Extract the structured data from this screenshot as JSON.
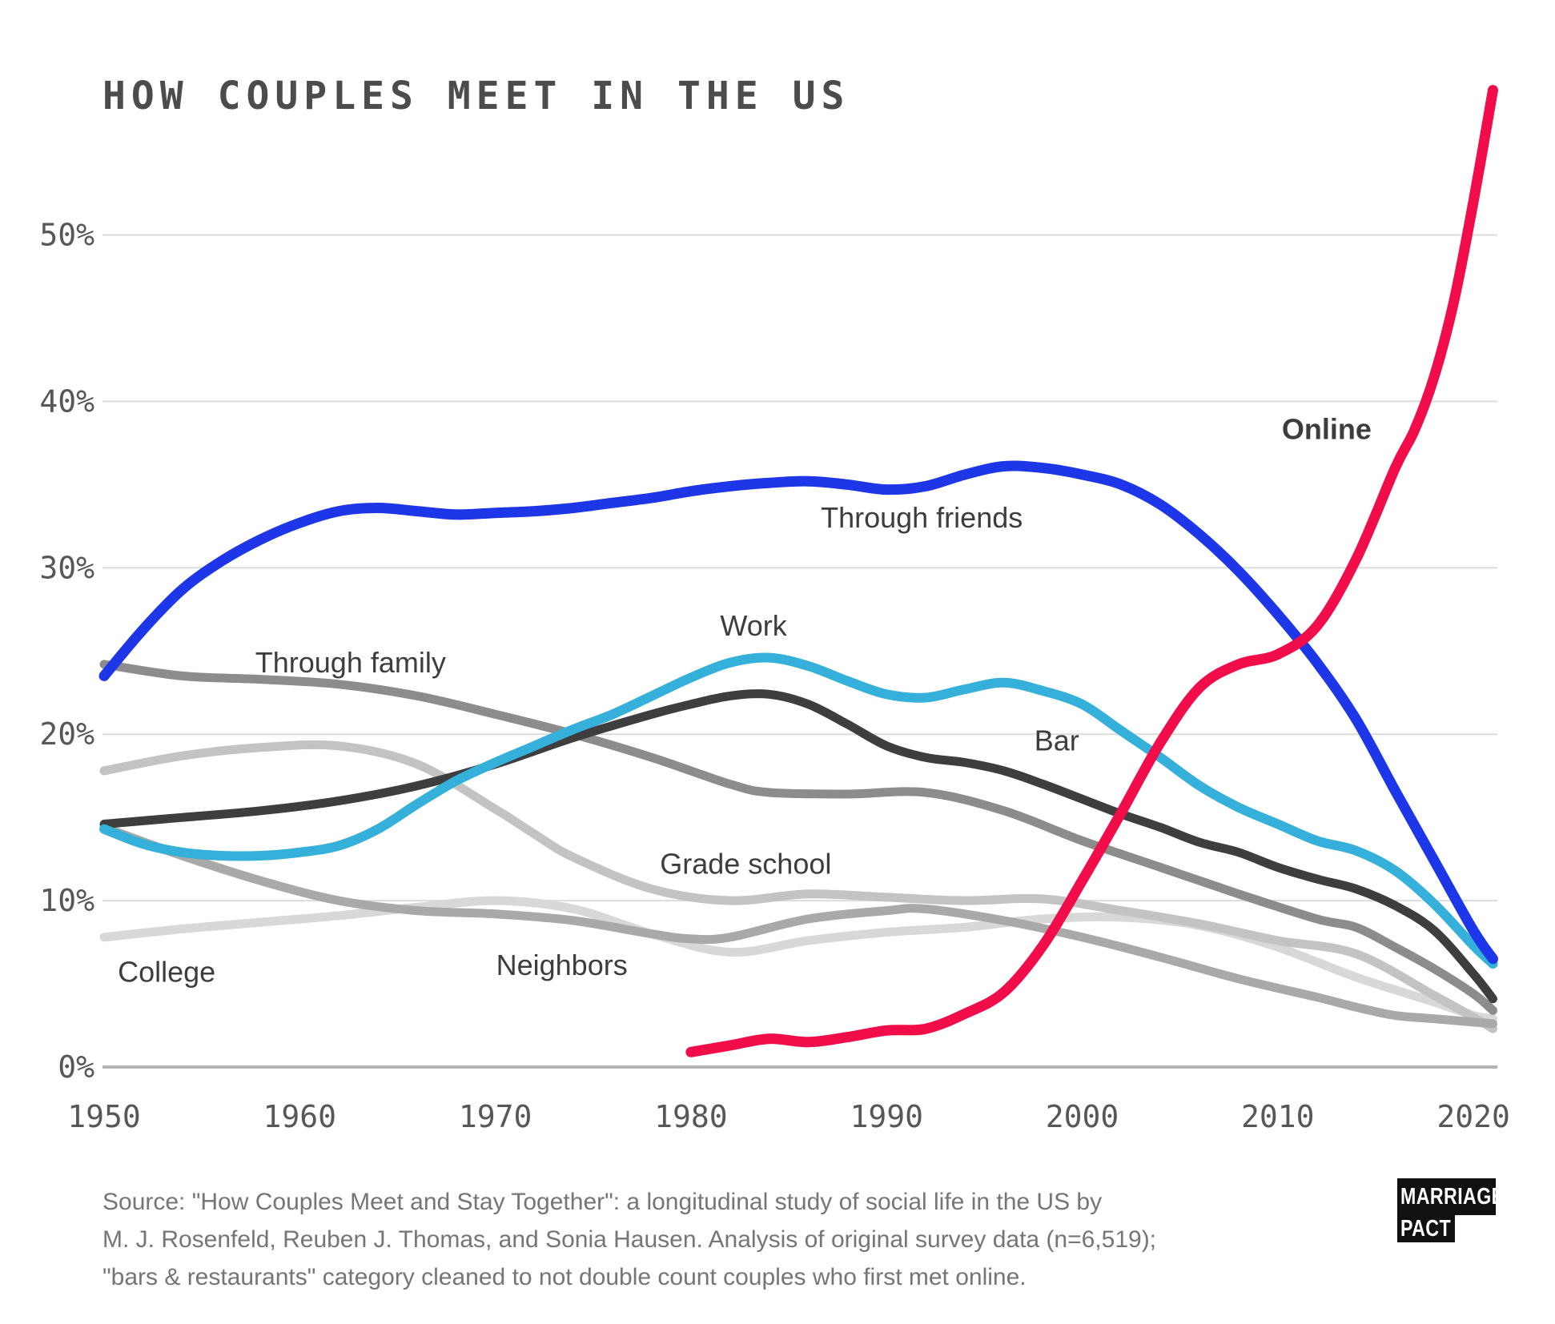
{
  "title": "HOW COUPLES MEET IN THE US",
  "source": {
    "lines": [
      "Source: \"How Couples Meet and Stay Together\": a longitudinal study of social life in the US by",
      "M. J. Rosenfeld, Reuben J. Thomas, and Sonia Hausen. Analysis of original survey data (n=6,519);",
      "\"bars & restaurants\" category cleaned to not double count couples who first met online."
    ]
  },
  "logo": {
    "line1": "MARRIAGE",
    "line2": "PACT"
  },
  "colors": {
    "background": "#ffffff",
    "title_text": "#4c4c4c",
    "tick_text": "#575757",
    "gridline": "#dcdcdc",
    "axis_line": "#b4b4b4",
    "label_text": "#3d3d3d",
    "online_red": "#f10d4a",
    "friends_blue": "#1c36e8",
    "work_cyan": "#34b0da",
    "bar_charcoal": "#3e3e3e",
    "family_gray": "#8c8c8c",
    "neighbors_gray": "#a9a9a9",
    "gradeschool_gray": "#c3c3c3",
    "college_gray": "#d8d8d8"
  },
  "chart_data": {
    "type": "line",
    "title": "HOW COUPLES MEET IN THE US",
    "xlabel": "",
    "ylabel": "",
    "grid": true,
    "legend_position": "inline-labels",
    "xlim": [
      1948.5,
      2022.5
    ],
    "ylim": [
      0,
      59
    ],
    "x_ticks": [
      {
        "v": 1950,
        "label": "1950"
      },
      {
        "v": 1960,
        "label": "1960"
      },
      {
        "v": 1970,
        "label": "1970"
      },
      {
        "v": 1980,
        "label": "1980"
      },
      {
        "v": 1990,
        "label": "1990"
      },
      {
        "v": 2000,
        "label": "2000"
      },
      {
        "v": 2010,
        "label": "2010"
      },
      {
        "v": 2020,
        "label": "2020"
      }
    ],
    "y_ticks": [
      {
        "v": 0,
        "label": "0%"
      },
      {
        "v": 10,
        "label": "10%"
      },
      {
        "v": 20,
        "label": "20%"
      },
      {
        "v": 30,
        "label": "30%"
      },
      {
        "v": 40,
        "label": "40%"
      },
      {
        "v": 50,
        "label": "50%"
      }
    ],
    "series": [
      {
        "name": "college",
        "label": "College",
        "color": "#d8d8d8",
        "stroke_width": 11,
        "label_bold": false,
        "label_color": "#3d3d3d",
        "label_pos": {
          "year": 1953.2,
          "pct": 5.7
        },
        "points": [
          [
            1950,
            7.8
          ],
          [
            1954,
            8.3
          ],
          [
            1958,
            8.7
          ],
          [
            1962,
            9.1
          ],
          [
            1966,
            9.6
          ],
          [
            1970,
            10.0
          ],
          [
            1974,
            9.5
          ],
          [
            1978,
            8.0
          ],
          [
            1982,
            6.9
          ],
          [
            1986,
            7.6
          ],
          [
            1990,
            8.1
          ],
          [
            1994,
            8.4
          ],
          [
            1998,
            8.9
          ],
          [
            2002,
            9.0
          ],
          [
            2006,
            8.5
          ],
          [
            2010,
            7.2
          ],
          [
            2014,
            5.4
          ],
          [
            2018,
            3.9
          ],
          [
            2020,
            3.1
          ],
          [
            2021,
            2.9
          ]
        ]
      },
      {
        "name": "grade_school",
        "label": "Grade school",
        "color": "#c3c3c3",
        "stroke_width": 11,
        "label_bold": false,
        "label_color": "#3d3d3d",
        "label_pos": {
          "year": 1982.8,
          "pct": 12.2
        },
        "points": [
          [
            1950,
            17.8
          ],
          [
            1954,
            18.7
          ],
          [
            1958,
            19.2
          ],
          [
            1962,
            19.3
          ],
          [
            1966,
            18.2
          ],
          [
            1970,
            15.5
          ],
          [
            1972,
            14.0
          ],
          [
            1974,
            12.6
          ],
          [
            1978,
            10.7
          ],
          [
            1982,
            10.0
          ],
          [
            1986,
            10.4
          ],
          [
            1990,
            10.2
          ],
          [
            1994,
            10.0
          ],
          [
            1998,
            10.1
          ],
          [
            2002,
            9.4
          ],
          [
            2006,
            8.6
          ],
          [
            2010,
            7.6
          ],
          [
            2014,
            6.8
          ],
          [
            2018,
            4.3
          ],
          [
            2020,
            3.0
          ],
          [
            2021,
            2.3
          ]
        ]
      },
      {
        "name": "neighbors",
        "label": "Neighbors",
        "color": "#a9a9a9",
        "stroke_width": 11,
        "label_bold": false,
        "label_color": "#3d3d3d",
        "label_pos": {
          "year": 1973.4,
          "pct": 6.1
        },
        "points": [
          [
            1950,
            14.4
          ],
          [
            1954,
            12.7
          ],
          [
            1958,
            11.2
          ],
          [
            1962,
            10.0
          ],
          [
            1966,
            9.4
          ],
          [
            1970,
            9.2
          ],
          [
            1974,
            8.8
          ],
          [
            1978,
            8.0
          ],
          [
            1980,
            7.7
          ],
          [
            1982,
            7.8
          ],
          [
            1986,
            8.9
          ],
          [
            1990,
            9.4
          ],
          [
            1992,
            9.5
          ],
          [
            1996,
            8.8
          ],
          [
            2000,
            7.8
          ],
          [
            2004,
            6.6
          ],
          [
            2008,
            5.3
          ],
          [
            2012,
            4.2
          ],
          [
            2014,
            3.6
          ],
          [
            2016,
            3.1
          ],
          [
            2018,
            2.9
          ],
          [
            2020,
            2.7
          ],
          [
            2021,
            2.6
          ]
        ]
      },
      {
        "name": "through_family",
        "label": "Through family",
        "color": "#8c8c8c",
        "stroke_width": 11,
        "label_bold": false,
        "label_color": "#3d3d3d",
        "label_pos": {
          "year": 1962.6,
          "pct": 24.3
        },
        "points": [
          [
            1950,
            24.2
          ],
          [
            1954,
            23.5
          ],
          [
            1958,
            23.3
          ],
          [
            1962,
            23.0
          ],
          [
            1966,
            22.3
          ],
          [
            1970,
            21.2
          ],
          [
            1974,
            20.0
          ],
          [
            1978,
            18.6
          ],
          [
            1982,
            17.0
          ],
          [
            1984,
            16.5
          ],
          [
            1988,
            16.4
          ],
          [
            1992,
            16.5
          ],
          [
            1996,
            15.4
          ],
          [
            2000,
            13.6
          ],
          [
            2004,
            12.0
          ],
          [
            2008,
            10.4
          ],
          [
            2012,
            8.9
          ],
          [
            2014,
            8.4
          ],
          [
            2016,
            7.2
          ],
          [
            2018,
            5.9
          ],
          [
            2020,
            4.4
          ],
          [
            2021,
            3.4
          ]
        ]
      },
      {
        "name": "bar",
        "label": "Bar",
        "color": "#3e3e3e",
        "stroke_width": 11,
        "label_bold": false,
        "label_color": "#3d3d3d",
        "label_pos": {
          "year": 1998.7,
          "pct": 19.6
        },
        "points": [
          [
            1950,
            14.6
          ],
          [
            1954,
            15.0
          ],
          [
            1958,
            15.4
          ],
          [
            1962,
            16.0
          ],
          [
            1966,
            16.9
          ],
          [
            1970,
            18.2
          ],
          [
            1974,
            19.8
          ],
          [
            1978,
            21.2
          ],
          [
            1980,
            21.8
          ],
          [
            1982,
            22.3
          ],
          [
            1984,
            22.4
          ],
          [
            1986,
            21.8
          ],
          [
            1988,
            20.6
          ],
          [
            1990,
            19.3
          ],
          [
            1992,
            18.6
          ],
          [
            1994,
            18.3
          ],
          [
            1996,
            17.8
          ],
          [
            1998,
            17.0
          ],
          [
            2000,
            16.1
          ],
          [
            2002,
            15.2
          ],
          [
            2004,
            14.4
          ],
          [
            2006,
            13.5
          ],
          [
            2008,
            12.9
          ],
          [
            2010,
            12.0
          ],
          [
            2012,
            11.3
          ],
          [
            2014,
            10.7
          ],
          [
            2016,
            9.7
          ],
          [
            2018,
            8.2
          ],
          [
            2020,
            5.6
          ],
          [
            2021,
            4.1
          ]
        ]
      },
      {
        "name": "work",
        "label": "Work",
        "color": "#34b0da",
        "stroke_width": 12,
        "label_bold": false,
        "label_color": "#3d3d3d",
        "label_pos": {
          "year": 1983.2,
          "pct": 26.5
        },
        "points": [
          [
            1950,
            14.3
          ],
          [
            1952,
            13.4
          ],
          [
            1954,
            12.9
          ],
          [
            1956,
            12.7
          ],
          [
            1958,
            12.7
          ],
          [
            1960,
            12.9
          ],
          [
            1962,
            13.3
          ],
          [
            1964,
            14.3
          ],
          [
            1966,
            15.8
          ],
          [
            1968,
            17.2
          ],
          [
            1970,
            18.3
          ],
          [
            1972,
            19.3
          ],
          [
            1974,
            20.3
          ],
          [
            1976,
            21.2
          ],
          [
            1978,
            22.3
          ],
          [
            1980,
            23.4
          ],
          [
            1982,
            24.3
          ],
          [
            1984,
            24.6
          ],
          [
            1986,
            24.1
          ],
          [
            1988,
            23.2
          ],
          [
            1990,
            22.4
          ],
          [
            1992,
            22.2
          ],
          [
            1994,
            22.7
          ],
          [
            1996,
            23.1
          ],
          [
            1998,
            22.6
          ],
          [
            2000,
            21.8
          ],
          [
            2002,
            20.2
          ],
          [
            2004,
            18.6
          ],
          [
            2006,
            16.9
          ],
          [
            2008,
            15.6
          ],
          [
            2010,
            14.6
          ],
          [
            2012,
            13.6
          ],
          [
            2014,
            13.0
          ],
          [
            2016,
            11.8
          ],
          [
            2018,
            9.8
          ],
          [
            2020,
            7.3
          ],
          [
            2021,
            6.2
          ]
        ]
      },
      {
        "name": "through_friends",
        "label": "Through friends",
        "color": "#1c36e8",
        "stroke_width": 13,
        "label_bold": false,
        "label_color": "#3d3d3d",
        "label_pos": {
          "year": 1991.8,
          "pct": 33.0
        },
        "points": [
          [
            1950,
            23.5
          ],
          [
            1952,
            26.3
          ],
          [
            1954,
            28.7
          ],
          [
            1956,
            30.4
          ],
          [
            1958,
            31.7
          ],
          [
            1960,
            32.7
          ],
          [
            1962,
            33.4
          ],
          [
            1964,
            33.6
          ],
          [
            1966,
            33.4
          ],
          [
            1968,
            33.2
          ],
          [
            1970,
            33.3
          ],
          [
            1972,
            33.4
          ],
          [
            1974,
            33.6
          ],
          [
            1976,
            33.9
          ],
          [
            1978,
            34.2
          ],
          [
            1980,
            34.6
          ],
          [
            1982,
            34.9
          ],
          [
            1984,
            35.1
          ],
          [
            1986,
            35.2
          ],
          [
            1988,
            35.0
          ],
          [
            1990,
            34.7
          ],
          [
            1992,
            34.9
          ],
          [
            1994,
            35.6
          ],
          [
            1996,
            36.1
          ],
          [
            1998,
            36.0
          ],
          [
            2000,
            35.6
          ],
          [
            2002,
            35.0
          ],
          [
            2004,
            33.8
          ],
          [
            2006,
            32.0
          ],
          [
            2008,
            29.8
          ],
          [
            2010,
            27.2
          ],
          [
            2012,
            24.3
          ],
          [
            2014,
            20.9
          ],
          [
            2016,
            16.6
          ],
          [
            2018,
            12.4
          ],
          [
            2020,
            8.2
          ],
          [
            2021,
            6.5
          ]
        ]
      },
      {
        "name": "online",
        "label": "Online",
        "color": "#f10d4a",
        "stroke_width": 13,
        "label_bold": true,
        "label_color": "#000000",
        "label_pos": {
          "year": 2012.5,
          "pct": 38.3
        },
        "points": [
          [
            1980,
            0.9
          ],
          [
            1982,
            1.3
          ],
          [
            1984,
            1.7
          ],
          [
            1986,
            1.5
          ],
          [
            1988,
            1.8
          ],
          [
            1990,
            2.2
          ],
          [
            1992,
            2.3
          ],
          [
            1994,
            3.2
          ],
          [
            1996,
            4.5
          ],
          [
            1998,
            7.3
          ],
          [
            2000,
            11.2
          ],
          [
            2002,
            15.3
          ],
          [
            2004,
            19.5
          ],
          [
            2006,
            22.8
          ],
          [
            2008,
            24.2
          ],
          [
            2010,
            24.8
          ],
          [
            2012,
            26.5
          ],
          [
            2014,
            30.5
          ],
          [
            2016,
            36.0
          ],
          [
            2017,
            38.3
          ],
          [
            2018,
            41.5
          ],
          [
            2019,
            46.0
          ],
          [
            2020,
            52.0
          ],
          [
            2021,
            58.7
          ]
        ]
      }
    ]
  }
}
